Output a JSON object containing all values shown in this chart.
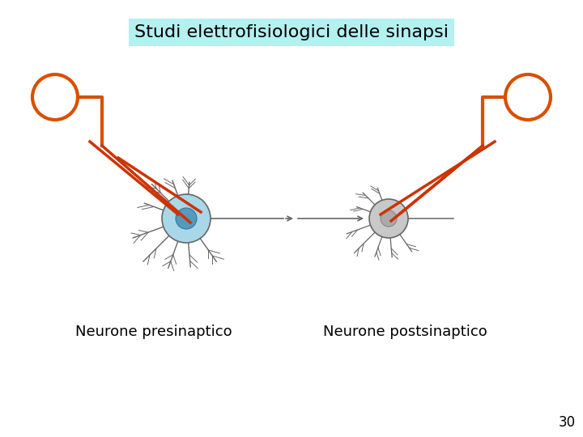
{
  "title": "Studi elettrofisiologici delle sinapsi",
  "title_bg": "#b3f0f0",
  "label_pre": "Neurone presinaptico",
  "label_post": "Neurone postsinaptico",
  "page_number": "30",
  "bg_color": "#ffffff",
  "orange_color": "#d94f00",
  "neuron_body_color": "#a8d8e8",
  "neuron_body_color2": "#c8c8c8",
  "neuron_outline": "#666666",
  "electrode_color": "#cc3300",
  "title_fontsize": 16,
  "label_fontsize": 13,
  "page_fontsize": 12
}
